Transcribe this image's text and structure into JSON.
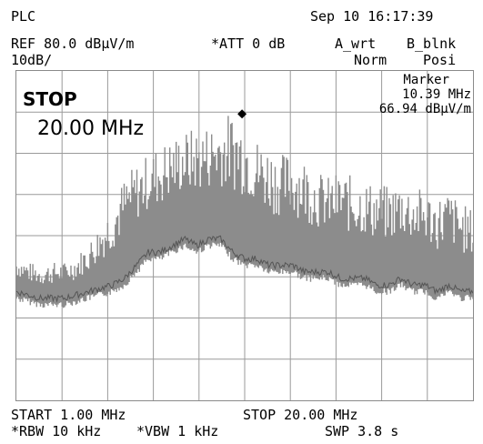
{
  "header": {
    "mode": "PLC",
    "datetime": "Sep 10 16:17:39",
    "ref_level": "REF 80.0 dBµV/m",
    "attenuation": "*ATT 0 dB",
    "trace_a": "A_wrt",
    "trace_b": "B_blnk",
    "scale": "10dB/",
    "detector_a": "Norm",
    "detector_b": "Posi"
  },
  "overlay": {
    "stop_label": "STOP",
    "stop_value": "20.00 MHz"
  },
  "marker": {
    "label": "Marker",
    "frequency": "10.39 MHz",
    "level": "66.94 dBµV/m"
  },
  "footer": {
    "start": "START 1.00 MHz",
    "stop": "STOP 20.00 MHz",
    "rbw": "*RBW 10 kHz",
    "vbw": "*VBW 1 kHz",
    "sweep": "SWP 3.8 s"
  },
  "chart_data": {
    "type": "line",
    "x_range_mhz": [
      1.0,
      20.0
    ],
    "y_range_dbuv_m": [
      -20,
      80
    ],
    "y_scale_db_per_div": 10,
    "grid": true,
    "grid_divisions": {
      "x": 10,
      "y": 8
    },
    "marker_point": {
      "x_mhz": 10.39,
      "y_dbuv_m": 66.94
    },
    "trace_color": "#8c8c8c",
    "series": [
      {
        "x": [
          1.0,
          1.5,
          2.0,
          2.5,
          3.0,
          3.5,
          4.0,
          4.5,
          5.0,
          5.5,
          6.0,
          6.5,
          7.0,
          7.5,
          8.0,
          8.5,
          9.0,
          9.5,
          10.0,
          10.5,
          11.0,
          11.5,
          12.0,
          12.5,
          13.0,
          13.5,
          14.0,
          14.5,
          15.0,
          15.5,
          16.0,
          16.5,
          17.0,
          17.5,
          18.0,
          18.5,
          19.0,
          19.5,
          20.0
        ],
        "max": [
          24,
          22,
          21,
          22,
          22,
          24,
          28,
          34,
          40,
          48,
          52,
          55,
          58,
          60,
          62,
          63,
          64,
          66,
          68,
          66,
          60,
          58,
          55,
          56,
          54,
          50,
          48,
          50,
          48,
          47,
          46,
          45,
          47,
          45,
          44,
          42,
          44,
          40,
          38
        ],
        "min": [
          12,
          11,
          10,
          10,
          10,
          11,
          12,
          13,
          14,
          16,
          20,
          24,
          24,
          26,
          28,
          26,
          28,
          28,
          24,
          22,
          22,
          20,
          20,
          20,
          18,
          18,
          18,
          16,
          16,
          16,
          14,
          14,
          16,
          14,
          14,
          12,
          14,
          12,
          12
        ]
      }
    ]
  }
}
